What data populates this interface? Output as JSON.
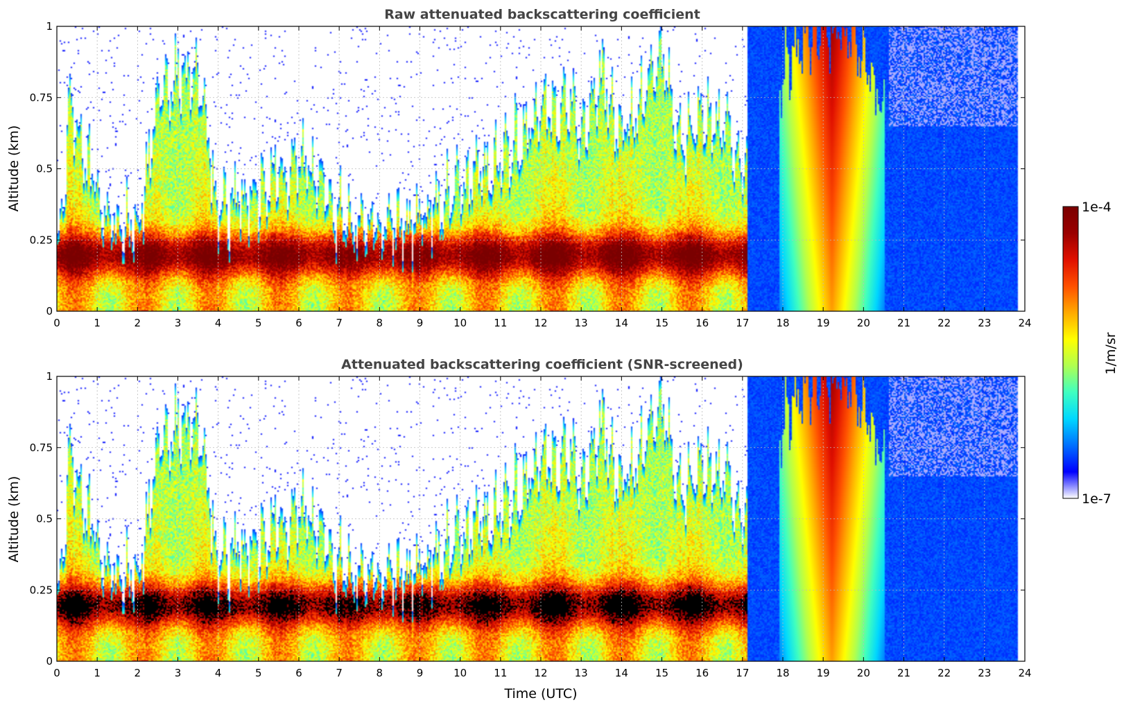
{
  "colormap": [
    "#ffffff",
    "#0000ff",
    "#0070ff",
    "#00d8ff",
    "#40ffc0",
    "#b0ff50",
    "#ffff00",
    "#ffaa00",
    "#ff5000",
    "#e01000",
    "#9a0000",
    "#7a0000"
  ],
  "screened_saturation_color": "#000000",
  "chart_data": [
    {
      "type": "heatmap",
      "title": "Raw attenuated backscattering coefficient",
      "ylabel": "Altitude (km)",
      "xlabel": "",
      "xlim": [
        0,
        24
      ],
      "ylim": [
        0,
        1
      ],
      "xticks": [
        "0",
        "1",
        "2",
        "3",
        "4",
        "5",
        "6",
        "7",
        "8",
        "9",
        "10",
        "11",
        "12",
        "13",
        "14",
        "15",
        "16",
        "17",
        "18",
        "19",
        "20",
        "21",
        "22",
        "23",
        "24"
      ],
      "yticks": [
        "0",
        "0.25",
        "0.5",
        "0.75",
        "1"
      ],
      "grid": true,
      "screened": false,
      "colorbar": {
        "min": "1e-7",
        "max": "1e-4",
        "label": "1/m/sr"
      }
    },
    {
      "type": "heatmap",
      "title": "Attenuated backscattering coefficient (SNR-screened)",
      "ylabel": "Altitude (km)",
      "xlabel": "Time (UTC)",
      "xlim": [
        0,
        24
      ],
      "ylim": [
        0,
        1
      ],
      "xticks": [
        "0",
        "1",
        "2",
        "3",
        "4",
        "5",
        "6",
        "7",
        "8",
        "9",
        "10",
        "11",
        "12",
        "13",
        "14",
        "15",
        "16",
        "17",
        "18",
        "19",
        "20",
        "21",
        "22",
        "23",
        "24"
      ],
      "yticks": [
        "0",
        "0.25",
        "0.5",
        "0.75",
        "1"
      ],
      "grid": true,
      "screened": true,
      "colorbar": {
        "min": "1e-7",
        "max": "1e-4",
        "label": "1/m/sr"
      }
    }
  ],
  "profile": {
    "hours": [
      0,
      0.3,
      0.6,
      1.0,
      1.5,
      2.0,
      2.5,
      3.0,
      3.5,
      4.0,
      5.0,
      6.0,
      7.0,
      8.0,
      8.5,
      9.0,
      10.0,
      11.0,
      12.0,
      12.5,
      13.0,
      13.5,
      14.0,
      14.5,
      15.0,
      15.5,
      16.0,
      16.5,
      17.0,
      17.2,
      18.0,
      18.5,
      19.0,
      19.5,
      20.0,
      20.5,
      21.0,
      22.0,
      23.0,
      23.8
    ],
    "cloud_top_km": [
      0.25,
      0.7,
      0.6,
      0.4,
      0.35,
      0.3,
      0.75,
      0.85,
      0.8,
      0.35,
      0.45,
      0.55,
      0.35,
      0.32,
      0.3,
      0.33,
      0.45,
      0.55,
      0.7,
      0.75,
      0.65,
      0.85,
      0.6,
      0.75,
      0.9,
      0.6,
      0.7,
      0.65,
      0.5,
      0.75,
      0.85,
      0.95,
      1.0,
      1.0,
      0.9,
      0.7,
      1.0,
      1.0,
      1.0,
      1.0
    ]
  }
}
